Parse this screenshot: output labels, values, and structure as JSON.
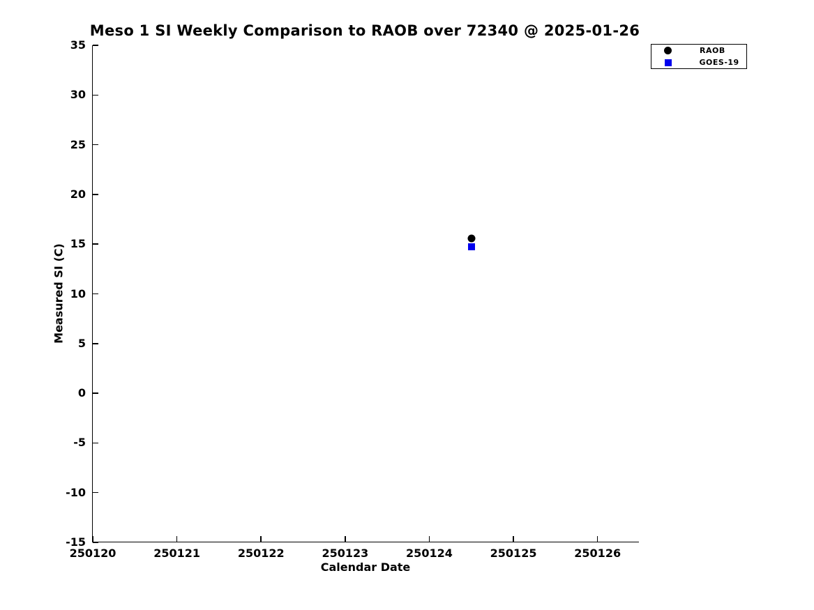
{
  "chart_data": {
    "type": "scatter",
    "title": "Meso 1 SI Weekly Comparison to RAOB over 72340 @ 2025-01-26",
    "xlabel": "Calendar Date",
    "ylabel": "Measured SI (C)",
    "xlim": [
      250120,
      250126.5
    ],
    "ylim": [
      -15,
      35
    ],
    "x_ticks": [
      250120,
      250121,
      250122,
      250123,
      250124,
      250125,
      250126
    ],
    "y_ticks": [
      35,
      30,
      25,
      20,
      15,
      10,
      5,
      0,
      -5,
      -10,
      -15
    ],
    "grid": false,
    "legend_position": "top-right-outside",
    "series": [
      {
        "name": "RAOB",
        "marker": "circle",
        "color": "#000000",
        "points": [
          {
            "x": 250124.5,
            "y": 15.6
          }
        ]
      },
      {
        "name": "GOES-19",
        "marker": "square",
        "color": "#0000ee",
        "points": [
          {
            "x": 250124.5,
            "y": 14.75
          }
        ]
      }
    ]
  }
}
